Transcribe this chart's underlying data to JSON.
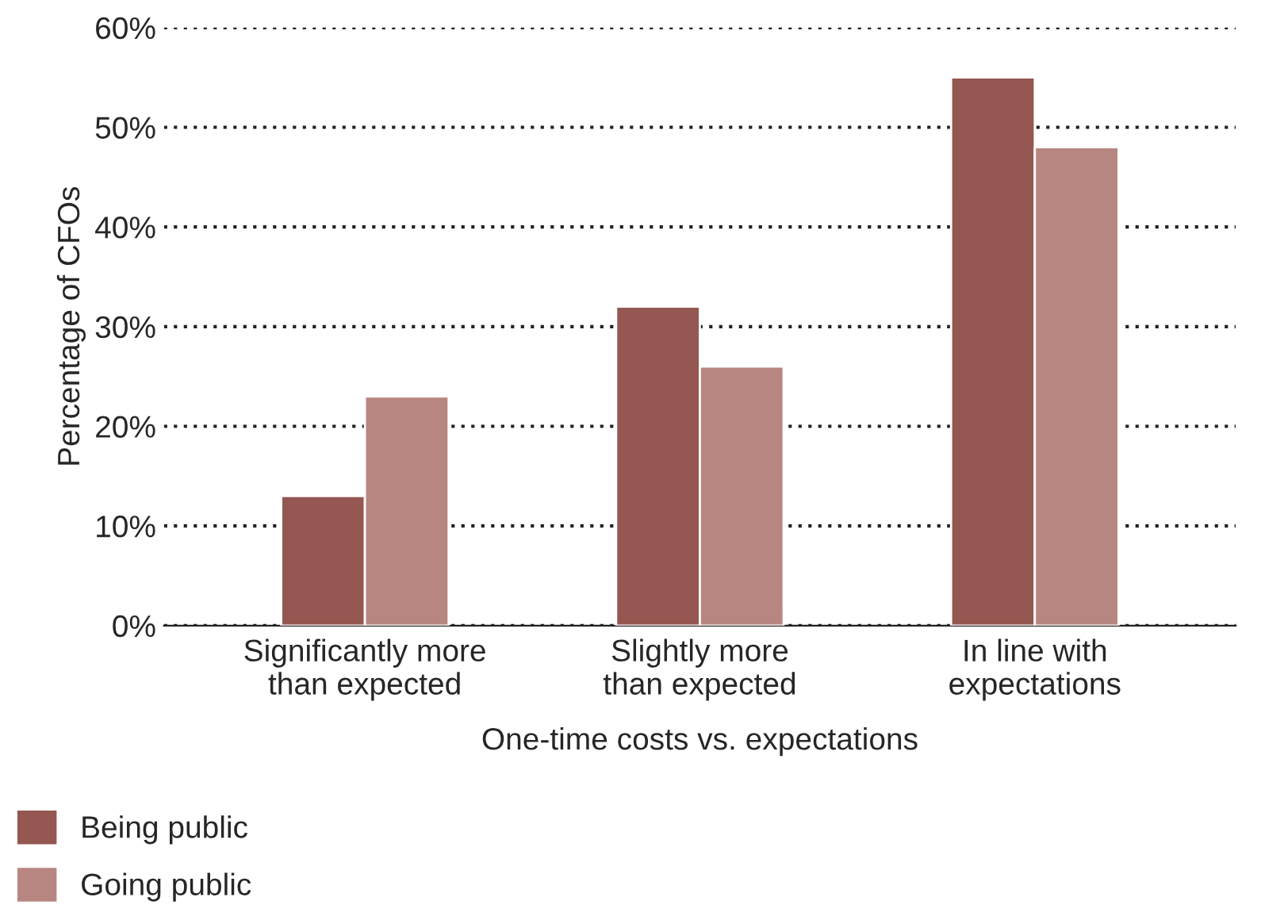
{
  "chart_data": {
    "type": "bar",
    "xlabel": "One-time costs vs. expectations",
    "ylabel": "Percentage of CFOs",
    "categories": [
      "Significantly more\nthan expected",
      "Slightly more\nthan expected",
      "In line with\nexpectations"
    ],
    "series": [
      {
        "name": "Being public",
        "color": "#955751",
        "values": [
          13,
          32,
          55
        ]
      },
      {
        "name": "Going public",
        "color": "#b88680",
        "values": [
          23,
          26,
          48
        ]
      }
    ],
    "ylim": [
      0,
      60
    ],
    "yticks": [
      {
        "value": 0,
        "label": "0%"
      },
      {
        "value": 10,
        "label": "10%"
      },
      {
        "value": 20,
        "label": "20%"
      },
      {
        "value": 30,
        "label": "30%"
      },
      {
        "value": 40,
        "label": "40%"
      },
      {
        "value": 50,
        "label": "50%"
      },
      {
        "value": 60,
        "label": "60%"
      }
    ],
    "grid": "y",
    "legend": "bottom left"
  }
}
